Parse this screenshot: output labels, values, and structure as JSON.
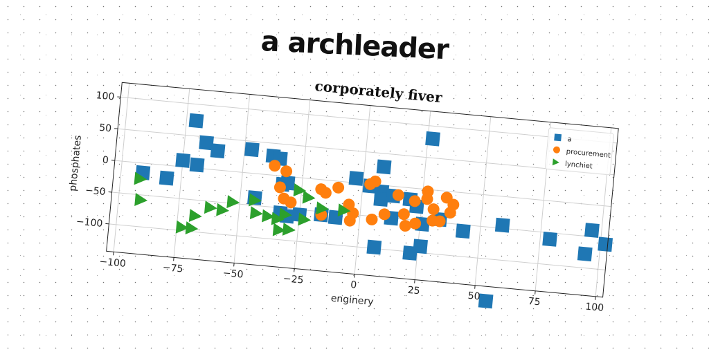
{
  "figure": {
    "suptitle": "a archleader"
  },
  "chart_data": {
    "type": "scatter",
    "title": "corporately fiver",
    "xlabel": "enginery",
    "ylabel": "phosphates",
    "xlim": [
      -103,
      103
    ],
    "ylim": [
      -143,
      123
    ],
    "xticks": [
      -100,
      -75,
      -50,
      -25,
      0,
      25,
      50,
      75,
      100
    ],
    "yticks": [
      -100,
      -50,
      0,
      50,
      100
    ],
    "xtick_labels": [
      "−100",
      "−75",
      "−50",
      "−25",
      "0",
      "25",
      "50",
      "75",
      "100"
    ],
    "ytick_labels": [
      "−100",
      "−50",
      "0",
      "50",
      "100"
    ],
    "grid": true,
    "legend_position": "top-right",
    "series": [
      {
        "name": "a",
        "color": "#1f77b4",
        "marker": "square",
        "points": [
          [
            -91,
            -15
          ],
          [
            -81,
            -20
          ],
          [
            -71,
            74
          ],
          [
            -66,
            41
          ],
          [
            -61,
            30
          ],
          [
            -75,
            10
          ],
          [
            -69,
            5
          ],
          [
            -47,
            37
          ],
          [
            -38,
            30
          ],
          [
            -35,
            27
          ],
          [
            -33,
            -13
          ],
          [
            -31,
            -10
          ],
          [
            -44,
            -38
          ],
          [
            -33,
            -58
          ],
          [
            -30,
            -62
          ],
          [
            -25,
            -58
          ],
          [
            -16,
            -55
          ],
          [
            -10,
            -57
          ],
          [
            -3,
            7
          ],
          [
            3,
            -3
          ],
          [
            8,
            29
          ],
          [
            8,
            -10
          ],
          [
            8,
            -22
          ],
          [
            13,
            -15
          ],
          [
            13,
            -50
          ],
          [
            20,
            -18
          ],
          [
            23,
            -28
          ],
          [
            26,
            -55
          ],
          [
            33,
            -45
          ],
          [
            43,
            -60
          ],
          [
            59,
            -45
          ],
          [
            79,
            -60
          ],
          [
            96,
            -40
          ],
          [
            102,
            -60
          ],
          [
            94,
            -78
          ],
          [
            7,
            -98
          ],
          [
            22,
            -102
          ],
          [
            26,
            -90
          ],
          [
            27,
            80
          ],
          [
            55,
            -166
          ]
        ]
      },
      {
        "name": "procurement",
        "color": "#ff7f0e",
        "marker": "circle",
        "points": [
          [
            -37,
            15
          ],
          [
            -32,
            8
          ],
          [
            -34,
            -18
          ],
          [
            -32,
            -35
          ],
          [
            -29,
            -40
          ],
          [
            -17,
            -15
          ],
          [
            -15,
            -20
          ],
          [
            -10,
            -10
          ],
          [
            -16,
            -55
          ],
          [
            -5,
            -35
          ],
          [
            -3,
            -48
          ],
          [
            5,
            -55
          ],
          [
            5,
            5
          ],
          [
            3,
            0
          ],
          [
            10,
            -45
          ],
          [
            15,
            -13
          ],
          [
            18,
            -42
          ],
          [
            19,
            -60
          ],
          [
            22,
            -20
          ],
          [
            23,
            -55
          ],
          [
            27,
            -3
          ],
          [
            27,
            -15
          ],
          [
            30,
            -30
          ],
          [
            30,
            -48
          ],
          [
            35,
            -10
          ],
          [
            38,
            -20
          ],
          [
            37,
            -33
          ],
          [
            33,
            -48
          ],
          [
            -4,
            -60
          ]
        ]
      },
      {
        "name": "lynchiet",
        "color": "#2ca02c",
        "marker": "triangle-right",
        "points": [
          [
            -92,
            -25
          ],
          [
            -91,
            -58
          ],
          [
            -73,
            -95
          ],
          [
            -69,
            -95
          ],
          [
            -68,
            -75
          ],
          [
            -62,
            -60
          ],
          [
            -57,
            -62
          ],
          [
            -53,
            -48
          ],
          [
            -44,
            -42
          ],
          [
            -43,
            -62
          ],
          [
            -38,
            -65
          ],
          [
            -34,
            -68
          ],
          [
            -31,
            -60
          ],
          [
            -33,
            -85
          ],
          [
            -29,
            -83
          ],
          [
            -26,
            -20
          ],
          [
            -23,
            -65
          ],
          [
            -22,
            -30
          ],
          [
            -16,
            -45
          ],
          [
            -7,
            -45
          ]
        ]
      }
    ]
  }
}
